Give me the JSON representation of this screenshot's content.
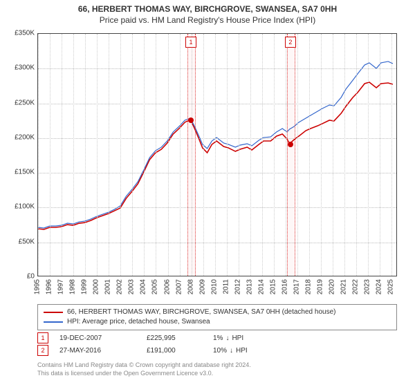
{
  "title": {
    "line1": "66, HERBERT THOMAS WAY, BIRCHGROVE, SWANSEA, SA7 0HH",
    "line2": "Price paid vs. HM Land Registry's House Price Index (HPI)"
  },
  "chart": {
    "type": "line",
    "background_color": "#ffffff",
    "grid_color": "#bbbbbb",
    "xgrid_color": "#cccccc",
    "border_color": "#444444",
    "title_fontsize": 12,
    "label_fontsize": 10,
    "y": {
      "min": 0,
      "max": 350000,
      "tick_step": 50000,
      "tick_labels": [
        "£0",
        "£50K",
        "£100K",
        "£150K",
        "£200K",
        "£250K",
        "£300K",
        "£350K"
      ]
    },
    "x": {
      "min": 1995,
      "max": 2025.5,
      "years": [
        1995,
        1996,
        1997,
        1998,
        1999,
        2000,
        2001,
        2002,
        2003,
        2004,
        2005,
        2006,
        2007,
        2008,
        2009,
        2010,
        2011,
        2012,
        2013,
        2014,
        2015,
        2016,
        2017,
        2018,
        2019,
        2020,
        2021,
        2022,
        2023,
        2024,
        2025
      ]
    },
    "series": [
      {
        "id": "price_paid",
        "label": "66, HERBERT THOMAS WAY, BIRCHGROVE, SWANSEA, SA7 0HH (detached house)",
        "color": "#cc0000",
        "line_width": 1.6,
        "data": [
          [
            1995,
            68000
          ],
          [
            1995.5,
            67000
          ],
          [
            1996,
            70000
          ],
          [
            1996.5,
            70000
          ],
          [
            1997,
            71000
          ],
          [
            1997.5,
            74000
          ],
          [
            1998,
            73000
          ],
          [
            1998.5,
            76000
          ],
          [
            1999,
            77000
          ],
          [
            1999.5,
            80000
          ],
          [
            2000,
            84000
          ],
          [
            2000.5,
            87000
          ],
          [
            2001,
            90000
          ],
          [
            2001.5,
            94000
          ],
          [
            2002,
            98000
          ],
          [
            2002.5,
            112000
          ],
          [
            2003,
            122000
          ],
          [
            2003.5,
            133000
          ],
          [
            2004,
            150000
          ],
          [
            2004.5,
            168000
          ],
          [
            2005,
            178000
          ],
          [
            2005.5,
            183000
          ],
          [
            2006,
            192000
          ],
          [
            2006.5,
            205000
          ],
          [
            2007,
            213000
          ],
          [
            2007.5,
            222000
          ],
          [
            2007.96,
            225995
          ],
          [
            2008.3,
            214000
          ],
          [
            2008.7,
            198000
          ],
          [
            2009,
            185000
          ],
          [
            2009.4,
            178000
          ],
          [
            2009.8,
            190000
          ],
          [
            2010.2,
            195000
          ],
          [
            2010.8,
            187000
          ],
          [
            2011.2,
            185000
          ],
          [
            2011.8,
            180000
          ],
          [
            2012.2,
            183000
          ],
          [
            2012.8,
            186000
          ],
          [
            2013.2,
            182000
          ],
          [
            2013.8,
            190000
          ],
          [
            2014.2,
            195000
          ],
          [
            2014.8,
            195000
          ],
          [
            2015.3,
            202000
          ],
          [
            2015.8,
            205000
          ],
          [
            2016.2,
            198000
          ],
          [
            2016.4,
            191000
          ],
          [
            2016.8,
            197000
          ],
          [
            2017.2,
            202000
          ],
          [
            2017.8,
            210000
          ],
          [
            2018.2,
            213000
          ],
          [
            2018.8,
            217000
          ],
          [
            2019.2,
            220000
          ],
          [
            2019.8,
            225000
          ],
          [
            2020.2,
            224000
          ],
          [
            2020.8,
            235000
          ],
          [
            2021.2,
            245000
          ],
          [
            2021.8,
            258000
          ],
          [
            2022.2,
            265000
          ],
          [
            2022.8,
            278000
          ],
          [
            2023.2,
            280000
          ],
          [
            2023.8,
            272000
          ],
          [
            2024.2,
            278000
          ],
          [
            2024.8,
            279000
          ],
          [
            2025.2,
            277000
          ]
        ]
      },
      {
        "id": "hpi",
        "label": "HPI: Average price, detached house, Swansea",
        "color": "#3366cc",
        "line_width": 1.2,
        "data": [
          [
            1995,
            70000
          ],
          [
            1995.5,
            69000
          ],
          [
            1996,
            72000
          ],
          [
            1996.5,
            72000
          ],
          [
            1997,
            73000
          ],
          [
            1997.5,
            76000
          ],
          [
            1998,
            75000
          ],
          [
            1998.5,
            78000
          ],
          [
            1999,
            79000
          ],
          [
            1999.5,
            82000
          ],
          [
            2000,
            86000
          ],
          [
            2000.5,
            89000
          ],
          [
            2001,
            92000
          ],
          [
            2001.5,
            96000
          ],
          [
            2002,
            101000
          ],
          [
            2002.5,
            115000
          ],
          [
            2003,
            125000
          ],
          [
            2003.5,
            136000
          ],
          [
            2004,
            153000
          ],
          [
            2004.5,
            171000
          ],
          [
            2005,
            181000
          ],
          [
            2005.5,
            186000
          ],
          [
            2006,
            195000
          ],
          [
            2006.5,
            208000
          ],
          [
            2007,
            216000
          ],
          [
            2007.5,
            225000
          ],
          [
            2007.96,
            228000
          ],
          [
            2008.3,
            217000
          ],
          [
            2008.7,
            202000
          ],
          [
            2009,
            190000
          ],
          [
            2009.4,
            184000
          ],
          [
            2009.8,
            195000
          ],
          [
            2010.2,
            200000
          ],
          [
            2010.8,
            192000
          ],
          [
            2011.2,
            190000
          ],
          [
            2011.8,
            186000
          ],
          [
            2012.2,
            189000
          ],
          [
            2012.8,
            191000
          ],
          [
            2013.2,
            188000
          ],
          [
            2013.8,
            196000
          ],
          [
            2014.2,
            200000
          ],
          [
            2014.8,
            201000
          ],
          [
            2015.3,
            208000
          ],
          [
            2015.8,
            213000
          ],
          [
            2016.2,
            208000
          ],
          [
            2016.4,
            212000
          ],
          [
            2016.8,
            216000
          ],
          [
            2017.2,
            222000
          ],
          [
            2017.8,
            228000
          ],
          [
            2018.2,
            232000
          ],
          [
            2018.8,
            238000
          ],
          [
            2019.2,
            242000
          ],
          [
            2019.8,
            247000
          ],
          [
            2020.2,
            246000
          ],
          [
            2020.8,
            258000
          ],
          [
            2021.2,
            270000
          ],
          [
            2021.8,
            283000
          ],
          [
            2022.2,
            292000
          ],
          [
            2022.8,
            305000
          ],
          [
            2023.2,
            308000
          ],
          [
            2023.8,
            300000
          ],
          [
            2024.2,
            308000
          ],
          [
            2024.8,
            310000
          ],
          [
            2025.2,
            307000
          ]
        ]
      }
    ],
    "sale_markers": [
      {
        "n": "1",
        "year": 2007.96,
        "price": 225995,
        "band_width_years": 0.6
      },
      {
        "n": "2",
        "year": 2016.4,
        "price": 191000,
        "band_width_years": 0.6
      }
    ],
    "marker_color": "#cc0000"
  },
  "legend": {
    "items": [
      {
        "color": "#cc0000",
        "text": "66, HERBERT THOMAS WAY, BIRCHGROVE, SWANSEA, SA7 0HH (detached house)"
      },
      {
        "color": "#3366cc",
        "text": "HPI: Average price, detached house, Swansea"
      }
    ]
  },
  "sales": [
    {
      "n": "1",
      "date": "19-DEC-2007",
      "price": "£225,995",
      "diff_pct": "1%",
      "diff_dir": "down",
      "diff_label": "HPI"
    },
    {
      "n": "2",
      "date": "27-MAY-2016",
      "price": "£191,000",
      "diff_pct": "10%",
      "diff_dir": "down",
      "diff_label": "HPI"
    }
  ],
  "footer": {
    "line1": "Contains HM Land Registry data © Crown copyright and database right 2024.",
    "line2": "This data is licensed under the Open Government Licence v3.0."
  }
}
